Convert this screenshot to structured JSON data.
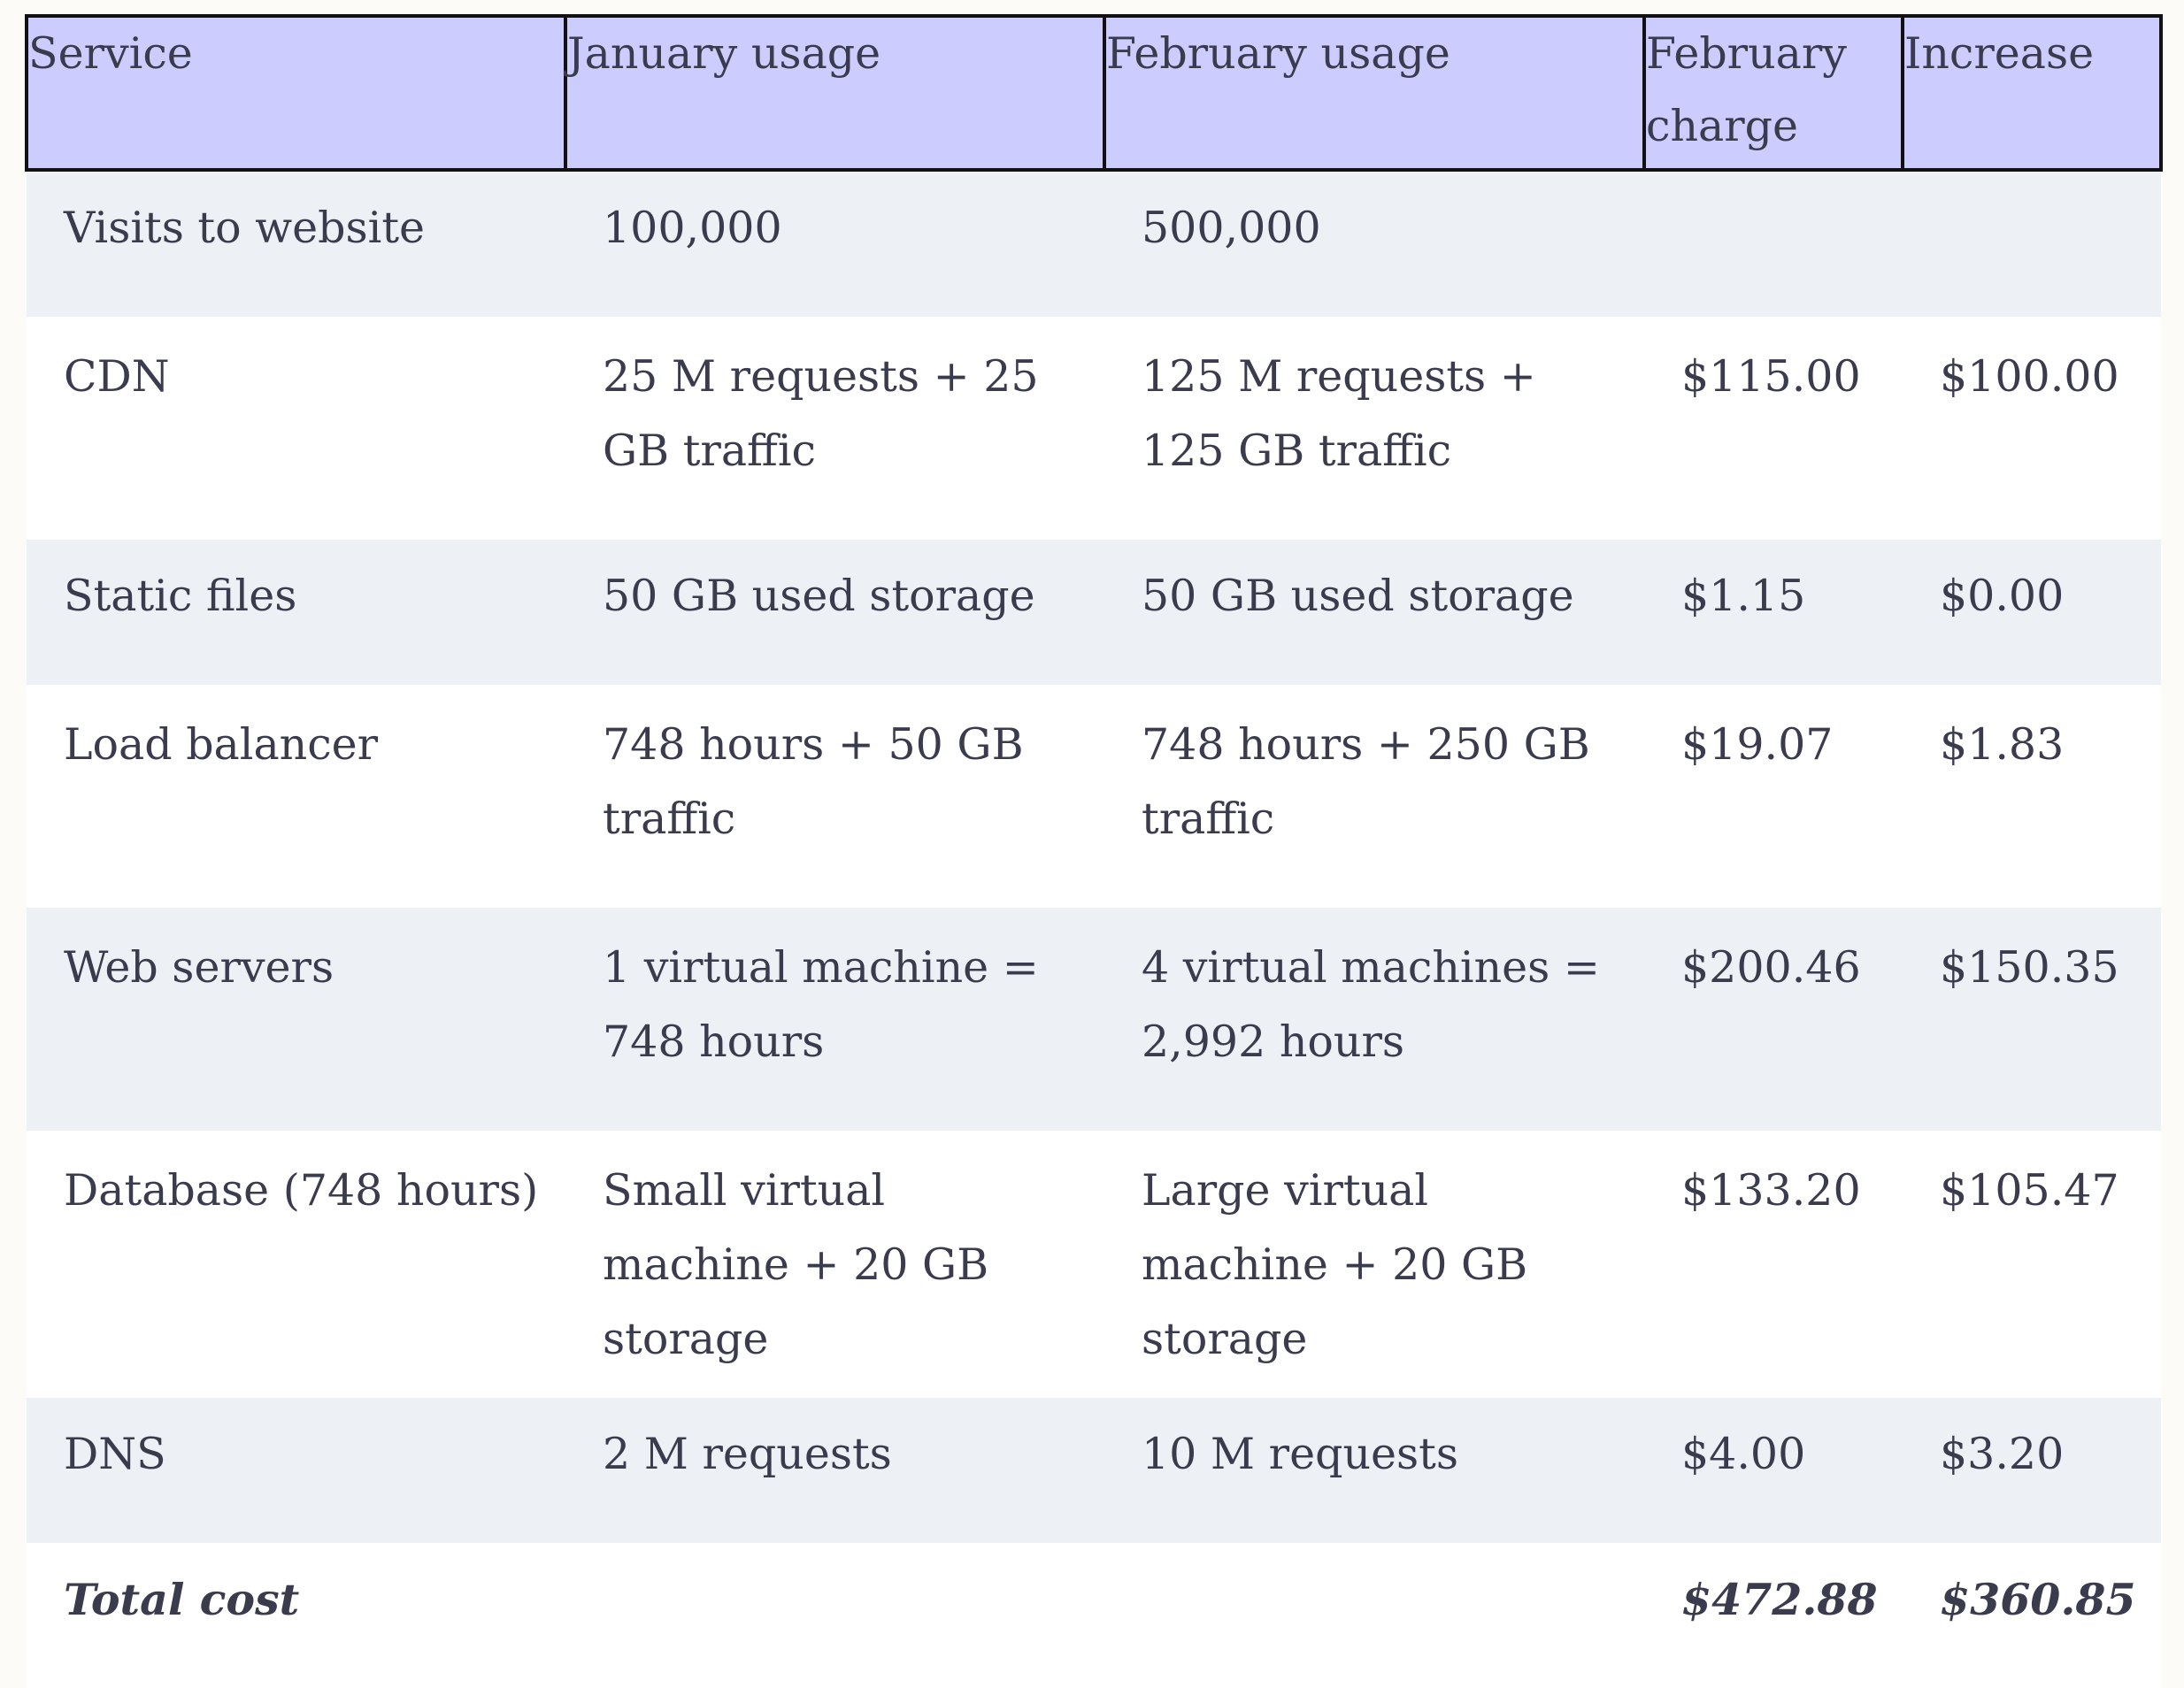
{
  "table": {
    "headers": {
      "service": "Service",
      "january_usage": "January usage",
      "february_usage": "February usage",
      "february_charge": "February charge",
      "increase": "Increase"
    },
    "rows": [
      {
        "service": "Visits to website",
        "january_usage": "100,000",
        "february_usage": "500,000",
        "february_charge": "",
        "increase": ""
      },
      {
        "service": "CDN",
        "january_usage": "25 M requests + 25 GB traffic",
        "february_usage": "125 M requests + 125 GB traffic",
        "february_charge": "$115.00",
        "increase": "$100.00"
      },
      {
        "service": "Static files",
        "january_usage": "50 GB used storage",
        "february_usage": "50 GB used storage",
        "february_charge": "$1.15",
        "increase": "$0.00"
      },
      {
        "service": "Load balancer",
        "january_usage": "748 hours + 50 GB traffic",
        "february_usage": "748 hours + 250 GB traffic",
        "february_charge": "$19.07",
        "increase": "$1.83"
      },
      {
        "service": "Web servers",
        "january_usage": "1 virtual machine = 748 hours",
        "february_usage": "4 virtual machines = 2,992 hours",
        "february_charge": "$200.46",
        "increase": "$150.35"
      },
      {
        "service": "Database (748 hours)",
        "january_usage": "Small virtual machine + 20 GB storage",
        "february_usage": "Large virtual machine + 20 GB storage",
        "february_charge": "$133.20",
        "increase": "$105.47"
      },
      {
        "service": "DNS",
        "january_usage": "2 M requests",
        "february_usage": "10 M requests",
        "february_charge": "$4.00",
        "increase": "$3.20"
      }
    ],
    "total": {
      "label": "Total cost",
      "february_charge": "$472.88",
      "increase": "$360.85"
    }
  },
  "colors": {
    "header_background": "#ccccff",
    "header_border": "#111111",
    "row_shaded": "#edf0f5",
    "row_plain": "#ffffff",
    "text": "#3a3c4e",
    "page_background": "#fcfbf7"
  }
}
